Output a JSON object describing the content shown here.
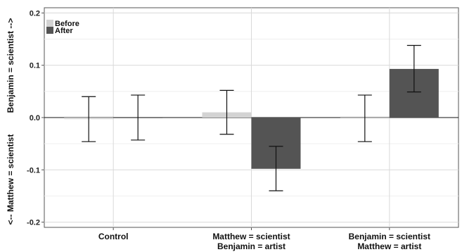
{
  "chart_data": {
    "type": "bar",
    "categories": [
      [
        "Control"
      ],
      [
        "Matthew = scientist",
        "Benjamin = artist"
      ],
      [
        "Benjamin = scientist",
        "Matthew = artist"
      ]
    ],
    "series": [
      {
        "name": "Before",
        "color": "#d3d3d3",
        "values": [
          -0.003,
          0.01,
          -0.002
        ],
        "error_low": [
          -0.046,
          -0.032,
          -0.046
        ],
        "error_high": [
          0.04,
          0.052,
          0.043
        ]
      },
      {
        "name": "After",
        "color": "#545454",
        "values": [
          0.0,
          -0.098,
          0.093
        ],
        "error_low": [
          -0.043,
          -0.14,
          0.049
        ],
        "error_high": [
          0.043,
          -0.055,
          0.138
        ]
      }
    ],
    "ylim": [
      -0.21,
      0.21
    ],
    "yticks": [
      "0.2",
      "0.1",
      "0.0",
      "-0.1",
      "-0.2"
    ],
    "ytick_values": [
      0.2,
      0.1,
      0.0,
      -0.1,
      -0.2
    ],
    "ylabel_top": "Benjamin = scientist -->",
    "ylabel_bottom": "<-- Matthew = scientist",
    "legend_position": "top-left",
    "grid": true
  }
}
